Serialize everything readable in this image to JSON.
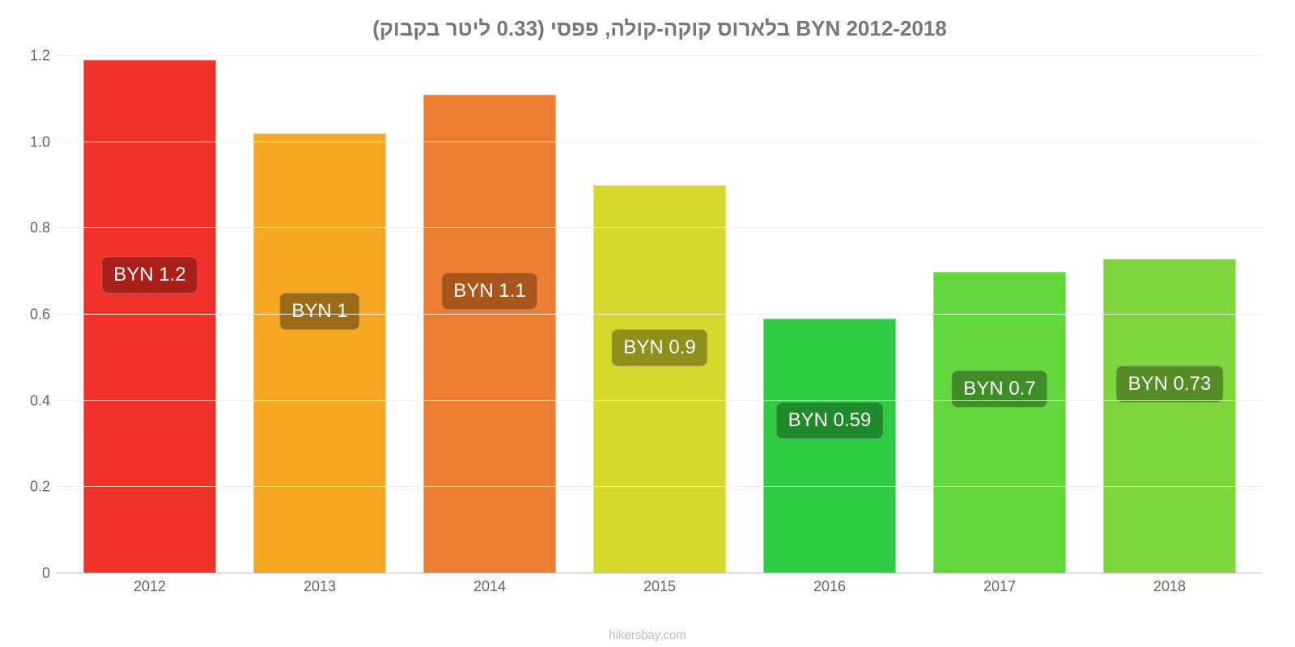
{
  "chart": {
    "type": "bar",
    "title": "בלארוס קוקה-קולה, פפסי (0.33 ליטר בקבוק) BYN 2012-2018",
    "title_color": "#777777",
    "title_fontsize": 26,
    "background_color": "#ffffff",
    "grid_color": "#f0f0f0",
    "baseline_color": "#bbbbbb",
    "axis_label_color": "#666666",
    "ylim_min": 0,
    "ylim_max": 1.2,
    "ytick_step": 0.2,
    "yticks": [
      {
        "value": 0,
        "label": "0"
      },
      {
        "value": 0.2,
        "label": "0.2"
      },
      {
        "value": 0.4,
        "label": "0.4"
      },
      {
        "value": 0.6,
        "label": "0.6"
      },
      {
        "value": 0.8,
        "label": "0.8"
      },
      {
        "value": 1.0,
        "label": "1.0"
      },
      {
        "value": 1.2,
        "label": "1.2"
      }
    ],
    "bar_width": 0.78,
    "value_label_fontsize": 24,
    "x_label_fontsize": 18,
    "y_label_fontsize": 18,
    "series": [
      {
        "category": "2012",
        "value": 1.19,
        "display": "BYN 1.2",
        "bar_color": "#f03129",
        "badge_bg": "#a9201b",
        "badge_text": "#ffffff",
        "badge_bottom_pct": 54
      },
      {
        "category": "2013",
        "value": 1.02,
        "display": "BYN 1",
        "bar_color": "#f5a623",
        "badge_bg": "#9a6a16",
        "badge_text": "#ffffff",
        "badge_bottom_pct": 47
      },
      {
        "category": "2014",
        "value": 1.11,
        "display": "BYN 1.1",
        "bar_color": "#ed7d31",
        "badge_bg": "#a9561d",
        "badge_text": "#ffffff",
        "badge_bottom_pct": 51
      },
      {
        "category": "2015",
        "value": 0.9,
        "display": "BYN 0.9",
        "bar_color": "#d6d92b",
        "badge_bg": "#8e901b",
        "badge_text": "#ffffff",
        "badge_bottom_pct": 40
      },
      {
        "category": "2016",
        "value": 0.59,
        "display": "BYN 0.59",
        "bar_color": "#2ecc40",
        "badge_bg": "#1e8a2c",
        "badge_text": "#ffffff",
        "badge_bottom_pct": 26
      },
      {
        "category": "2017",
        "value": 0.7,
        "display": "BYN 0.7",
        "bar_color": "#63d83c",
        "badge_bg": "#3f8d26",
        "badge_text": "#ffffff",
        "badge_bottom_pct": 32
      },
      {
        "category": "2018",
        "value": 0.73,
        "display": "BYN 0.73",
        "bar_color": "#7fd63c",
        "badge_bg": "#548d26",
        "badge_text": "#ffffff",
        "badge_bottom_pct": 33
      }
    ],
    "watermark": "hikersbay.com",
    "watermark_color": "#bdbdbd"
  }
}
